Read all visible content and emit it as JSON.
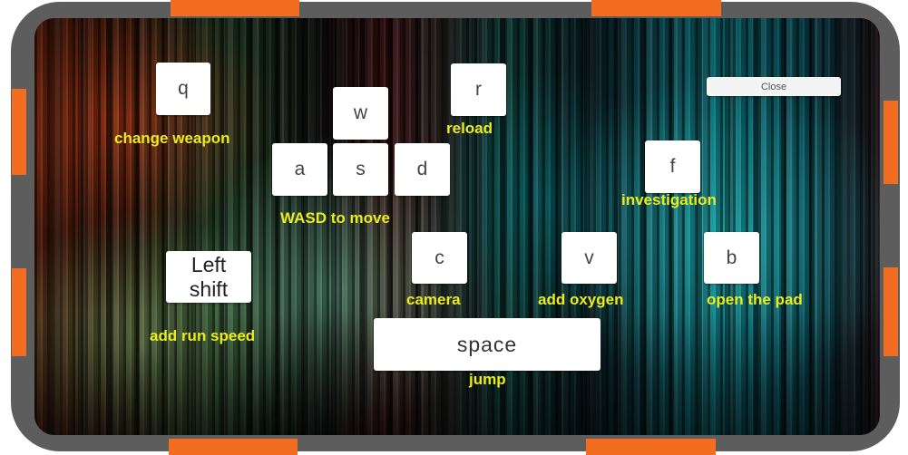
{
  "controls": {
    "close_label": "Close",
    "keys": {
      "q": "q",
      "w": "w",
      "a": "a",
      "s": "s",
      "d": "d",
      "r": "r",
      "f": "f",
      "c": "c",
      "v": "v",
      "b": "b",
      "left_shift": "Left\nshift",
      "space": "space"
    },
    "labels": {
      "change_weapon": "change weapon",
      "reload": "reload",
      "wasd": "WASD to move",
      "investigation": "investigation",
      "add_run_speed": "add run speed",
      "camera": "camera",
      "add_oxygen": "add oxygen",
      "open_pad": "open the pad",
      "jump": "jump"
    }
  },
  "colors": {
    "label_yellow": "#ecec1c",
    "frame_gray": "#5d5d5d",
    "bracket_orange": "#f26d1f",
    "key_white": "#ffffff"
  }
}
